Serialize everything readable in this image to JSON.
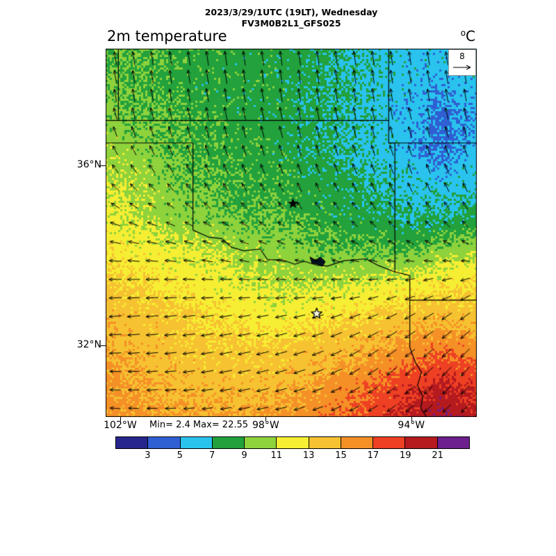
{
  "header": {
    "line1": "2023/3/29/1UTC (19LT), Wednesday",
    "line2": "FV3M0B2L1_GFS025"
  },
  "title": "2m temperature",
  "units": {
    "sup": "o",
    "main": "C"
  },
  "ref_vector": {
    "value": "8"
  },
  "stats_text": "Min= 2.4 Max= 22.55",
  "axes": {
    "lat_ticks": [
      {
        "label": "36°N",
        "value": 36
      },
      {
        "label": "32°N",
        "value": 32
      }
    ],
    "lon_ticks": [
      {
        "label": "102°W",
        "value": -102
      },
      {
        "label": "98°W",
        "value": -98
      },
      {
        "label": "94°W",
        "value": -94
      }
    ]
  },
  "colorbar": {
    "tick_labels": [
      "3",
      "5",
      "7",
      "9",
      "11",
      "13",
      "15",
      "17",
      "19",
      "21"
    ],
    "colors": [
      "#26268c",
      "#2f5fd2",
      "#29c3ee",
      "#22a13c",
      "#8ed23c",
      "#f6ee33",
      "#f6c231",
      "#f59027",
      "#ee4023",
      "#b51a1f",
      "#6d1f8d"
    ]
  },
  "chart_data": {
    "type": "heatmap",
    "title": "2m temperature",
    "units": "degC",
    "min": 2.4,
    "max": 22.55,
    "lon_range": [
      -102.4,
      -92.2
    ],
    "lat_range": [
      30.4,
      38.6
    ],
    "levels": [
      3,
      5,
      7,
      9,
      11,
      13,
      15,
      17,
      19,
      21
    ],
    "palette": [
      "#26268c",
      "#2f5fd2",
      "#29c3ee",
      "#22a13c",
      "#8ed23c",
      "#f6ee33",
      "#f6c231",
      "#f59027",
      "#ee4023",
      "#b51a1f",
      "#6d1f8d"
    ],
    "grid_lons": [
      -102.4,
      -101.47,
      -100.55,
      -99.62,
      -98.69,
      -97.76,
      -96.84,
      -95.91,
      -94.98,
      -94.05,
      -93.13,
      -92.2
    ],
    "grid_lats": [
      38.6,
      37.85,
      37.1,
      36.35,
      35.6,
      34.85,
      34.1,
      33.35,
      32.6,
      31.85,
      31.1,
      30.4
    ],
    "temperature": [
      [
        9,
        9,
        8.5,
        8.5,
        8,
        8,
        7.5,
        7,
        6.5,
        6,
        6,
        6.5
      ],
      [
        9,
        9,
        8.5,
        8,
        8,
        8,
        7.5,
        7,
        6.5,
        6,
        5.5,
        6
      ],
      [
        9.5,
        9,
        9,
        8.5,
        8,
        8,
        7.5,
        7,
        6.5,
        5.5,
        4.5,
        5.5
      ],
      [
        10.5,
        10,
        9,
        8.5,
        8.5,
        8,
        7.5,
        7,
        6.5,
        5.5,
        4.5,
        6
      ],
      [
        11,
        10.5,
        9.5,
        9,
        8.5,
        8.5,
        8,
        7.5,
        7,
        6.5,
        6,
        6.5
      ],
      [
        11.5,
        11,
        10,
        9.5,
        9,
        9,
        8.5,
        8,
        7.5,
        7,
        7,
        7.5
      ],
      [
        12.5,
        12,
        11.5,
        11,
        10.5,
        10,
        9.5,
        9,
        9,
        9,
        10,
        10.5
      ],
      [
        13.5,
        13,
        12.5,
        12,
        11.5,
        11,
        11,
        11,
        11.5,
        12,
        12.5,
        13
      ],
      [
        14.5,
        14,
        13.5,
        13,
        12.5,
        12,
        12.5,
        13,
        13.5,
        14,
        14.5,
        14
      ],
      [
        15,
        14.5,
        14,
        13.5,
        13.5,
        13.5,
        14,
        14.5,
        15,
        16,
        17,
        16
      ],
      [
        15.5,
        15,
        14.5,
        14.5,
        14,
        14.5,
        15,
        16,
        17,
        18.5,
        19.5,
        18.5
      ],
      [
        16,
        15.5,
        15,
        15,
        15,
        15.5,
        16,
        17,
        18,
        19.5,
        21,
        19.5
      ]
    ],
    "wind": {
      "ref_speed": 8,
      "lons": [
        -102.4,
        -101,
        -99.6,
        -98.2,
        -96.8,
        -95.4,
        -93.8,
        -92.2
      ],
      "lats": [
        38.6,
        37.6,
        36.6,
        35.6,
        34.6,
        33.6,
        32.6,
        31.6,
        30.4
      ],
      "u": [
        [
          -1,
          -1,
          -1,
          -1,
          -1,
          -1,
          -1,
          -1
        ],
        [
          -1,
          -1,
          -1,
          -1,
          -1,
          -1,
          -1,
          -1
        ],
        [
          -2,
          -2,
          -1.5,
          -1.5,
          -1.5,
          -1.5,
          -1.5,
          -1.5
        ],
        [
          -3.5,
          -3,
          -2.5,
          -2,
          -2,
          -2,
          -2,
          -2
        ],
        [
          -5,
          -4.5,
          -4,
          -3.5,
          -3,
          -3,
          -3,
          -3
        ],
        [
          -6,
          -6,
          -5.5,
          -5,
          -5,
          -4.5,
          -4.5,
          -4.5
        ],
        [
          -6,
          -6,
          -6,
          -5.5,
          -5.5,
          -5,
          -5,
          -4.5
        ],
        [
          -5.5,
          -5.5,
          -6,
          -6,
          -5.5,
          -5,
          -4.5,
          -4
        ],
        [
          -5,
          -5,
          -5,
          -5.5,
          -5,
          -4.5,
          -4,
          -3.5
        ]
      ],
      "v": [
        [
          6.5,
          6.5,
          7,
          7,
          7,
          7,
          6.5,
          6.5
        ],
        [
          6,
          6,
          6.5,
          6.5,
          6.5,
          6.5,
          6,
          6
        ],
        [
          5,
          5,
          5.5,
          5.5,
          5.5,
          5.5,
          5,
          5
        ],
        [
          3.5,
          3.5,
          4,
          4,
          4.5,
          4.5,
          4.5,
          4.5
        ],
        [
          1.5,
          1.5,
          2,
          2,
          2.5,
          2.5,
          3,
          3
        ],
        [
          0,
          0,
          0.5,
          0.5,
          0.5,
          0,
          -0.5,
          -1
        ],
        [
          -0.5,
          -0.5,
          -1,
          -1,
          -1.5,
          -2,
          -3,
          -3.5
        ],
        [
          0,
          -0.5,
          -1,
          -1.5,
          -2,
          -3,
          -4,
          -4.5
        ],
        [
          0.5,
          0,
          -0.5,
          -1,
          -1.5,
          -2.5,
          -3.5,
          -4
        ]
      ]
    },
    "boundaries": [
      [
        [
          -102.4,
          37
        ],
        [
          -94.62,
          37
        ]
      ],
      [
        [
          -102.05,
          38.6
        ],
        [
          -102.05,
          37
        ]
      ],
      [
        [
          -102.4,
          36.5
        ],
        [
          -100,
          36.5
        ]
      ],
      [
        [
          -100,
          36.5
        ],
        [
          -100,
          34.56
        ]
      ],
      [
        [
          -100,
          34.56
        ],
        [
          -99.55,
          34.4
        ],
        [
          -99.2,
          34.37
        ],
        [
          -98.95,
          34.18
        ],
        [
          -98.6,
          34.1
        ],
        [
          -98.15,
          34.14
        ],
        [
          -97.95,
          33.9
        ],
        [
          -97.55,
          33.9
        ],
        [
          -97.2,
          33.8
        ],
        [
          -96.95,
          33.87
        ],
        [
          -96.6,
          33.78
        ],
        [
          -96.3,
          33.76
        ],
        [
          -95.85,
          33.88
        ],
        [
          -95.25,
          33.92
        ],
        [
          -94.9,
          33.77
        ],
        [
          -94.45,
          33.63
        ],
        [
          -94.04,
          33.55
        ]
      ],
      [
        [
          -94.62,
          38.6
        ],
        [
          -94.62,
          36.5
        ],
        [
          -94.45,
          36.5
        ],
        [
          -94.45,
          33.63
        ]
      ],
      [
        [
          -94.62,
          36.5
        ],
        [
          -92.2,
          36.5
        ]
      ],
      [
        [
          -94.04,
          33.55
        ],
        [
          -94.04,
          31.95
        ],
        [
          -93.88,
          31.6
        ],
        [
          -93.72,
          31.4
        ],
        [
          -93.83,
          31.1
        ],
        [
          -93.68,
          30.85
        ],
        [
          -93.74,
          30.6
        ],
        [
          -93.58,
          30.4
        ]
      ],
      [
        [
          -94.04,
          33
        ],
        [
          -92.2,
          33
        ]
      ]
    ],
    "lake": [
      [
        -96.78,
        33.96
      ],
      [
        -96.62,
        33.88
      ],
      [
        -96.5,
        33.96
      ],
      [
        -96.37,
        33.86
      ],
      [
        -96.44,
        33.76
      ],
      [
        -96.6,
        33.81
      ],
      [
        -96.73,
        33.83
      ]
    ],
    "stars": [
      {
        "lon": -97.25,
        "lat": 35.15,
        "filled": true
      },
      {
        "lon": -96.6,
        "lat": 32.7,
        "filled": false
      }
    ]
  }
}
